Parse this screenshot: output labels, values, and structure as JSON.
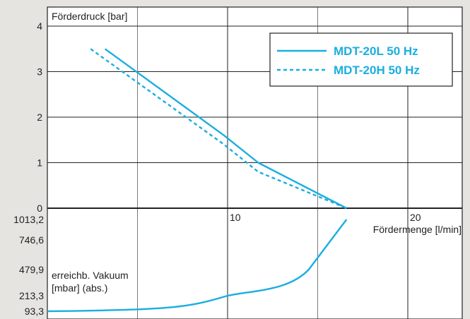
{
  "chart_data": {
    "type": "line",
    "colors": {
      "series": "#1aaee0",
      "grid": "#222222",
      "plot_bg": "#ffffff",
      "page_bg": "#e6e4e1"
    },
    "pressure_axis": {
      "label": "Förderdruck [bar]",
      "ticks": [
        "4",
        "3",
        "2",
        "1",
        "0"
      ],
      "ylim": [
        0,
        4.4
      ]
    },
    "flow_axis": {
      "label": "Fördermenge [l/min]",
      "ticks": [
        "10",
        "20"
      ],
      "xlim": [
        0,
        23.3
      ]
    },
    "vacuum_axis": {
      "label_line1": "erreichb. Vakuum",
      "label_line2": "[mbar] (abs.)",
      "ticks": [
        "1013,2",
        "746,6",
        "479,9",
        "213,3",
        "93,3"
      ]
    },
    "legend": {
      "position": "top-right",
      "entries": [
        {
          "name": "MDT-20L 50 Hz",
          "style": "solid"
        },
        {
          "name": "MDT-20H 50 Hz",
          "style": "dashed"
        }
      ]
    },
    "series": [
      {
        "name": "MDT-20L 50 Hz",
        "style": "solid",
        "pressure_points": [
          [
            3.2,
            3.5
          ],
          [
            9.8,
            1.6
          ],
          [
            11.7,
            1.0
          ],
          [
            16.6,
            0
          ]
        ]
      },
      {
        "name": "MDT-20H 50 Hz",
        "style": "dashed",
        "pressure_points": [
          [
            2.4,
            3.5
          ],
          [
            9.8,
            1.4
          ],
          [
            11.7,
            0.8
          ],
          [
            16.6,
            0
          ]
        ]
      }
    ],
    "vacuum_curve": [
      [
        0,
        93.3
      ],
      [
        7,
        110
      ],
      [
        10,
        213.3
      ],
      [
        13,
        280
      ],
      [
        14.5,
        479.9
      ],
      [
        16.6,
        1013.2
      ]
    ]
  }
}
